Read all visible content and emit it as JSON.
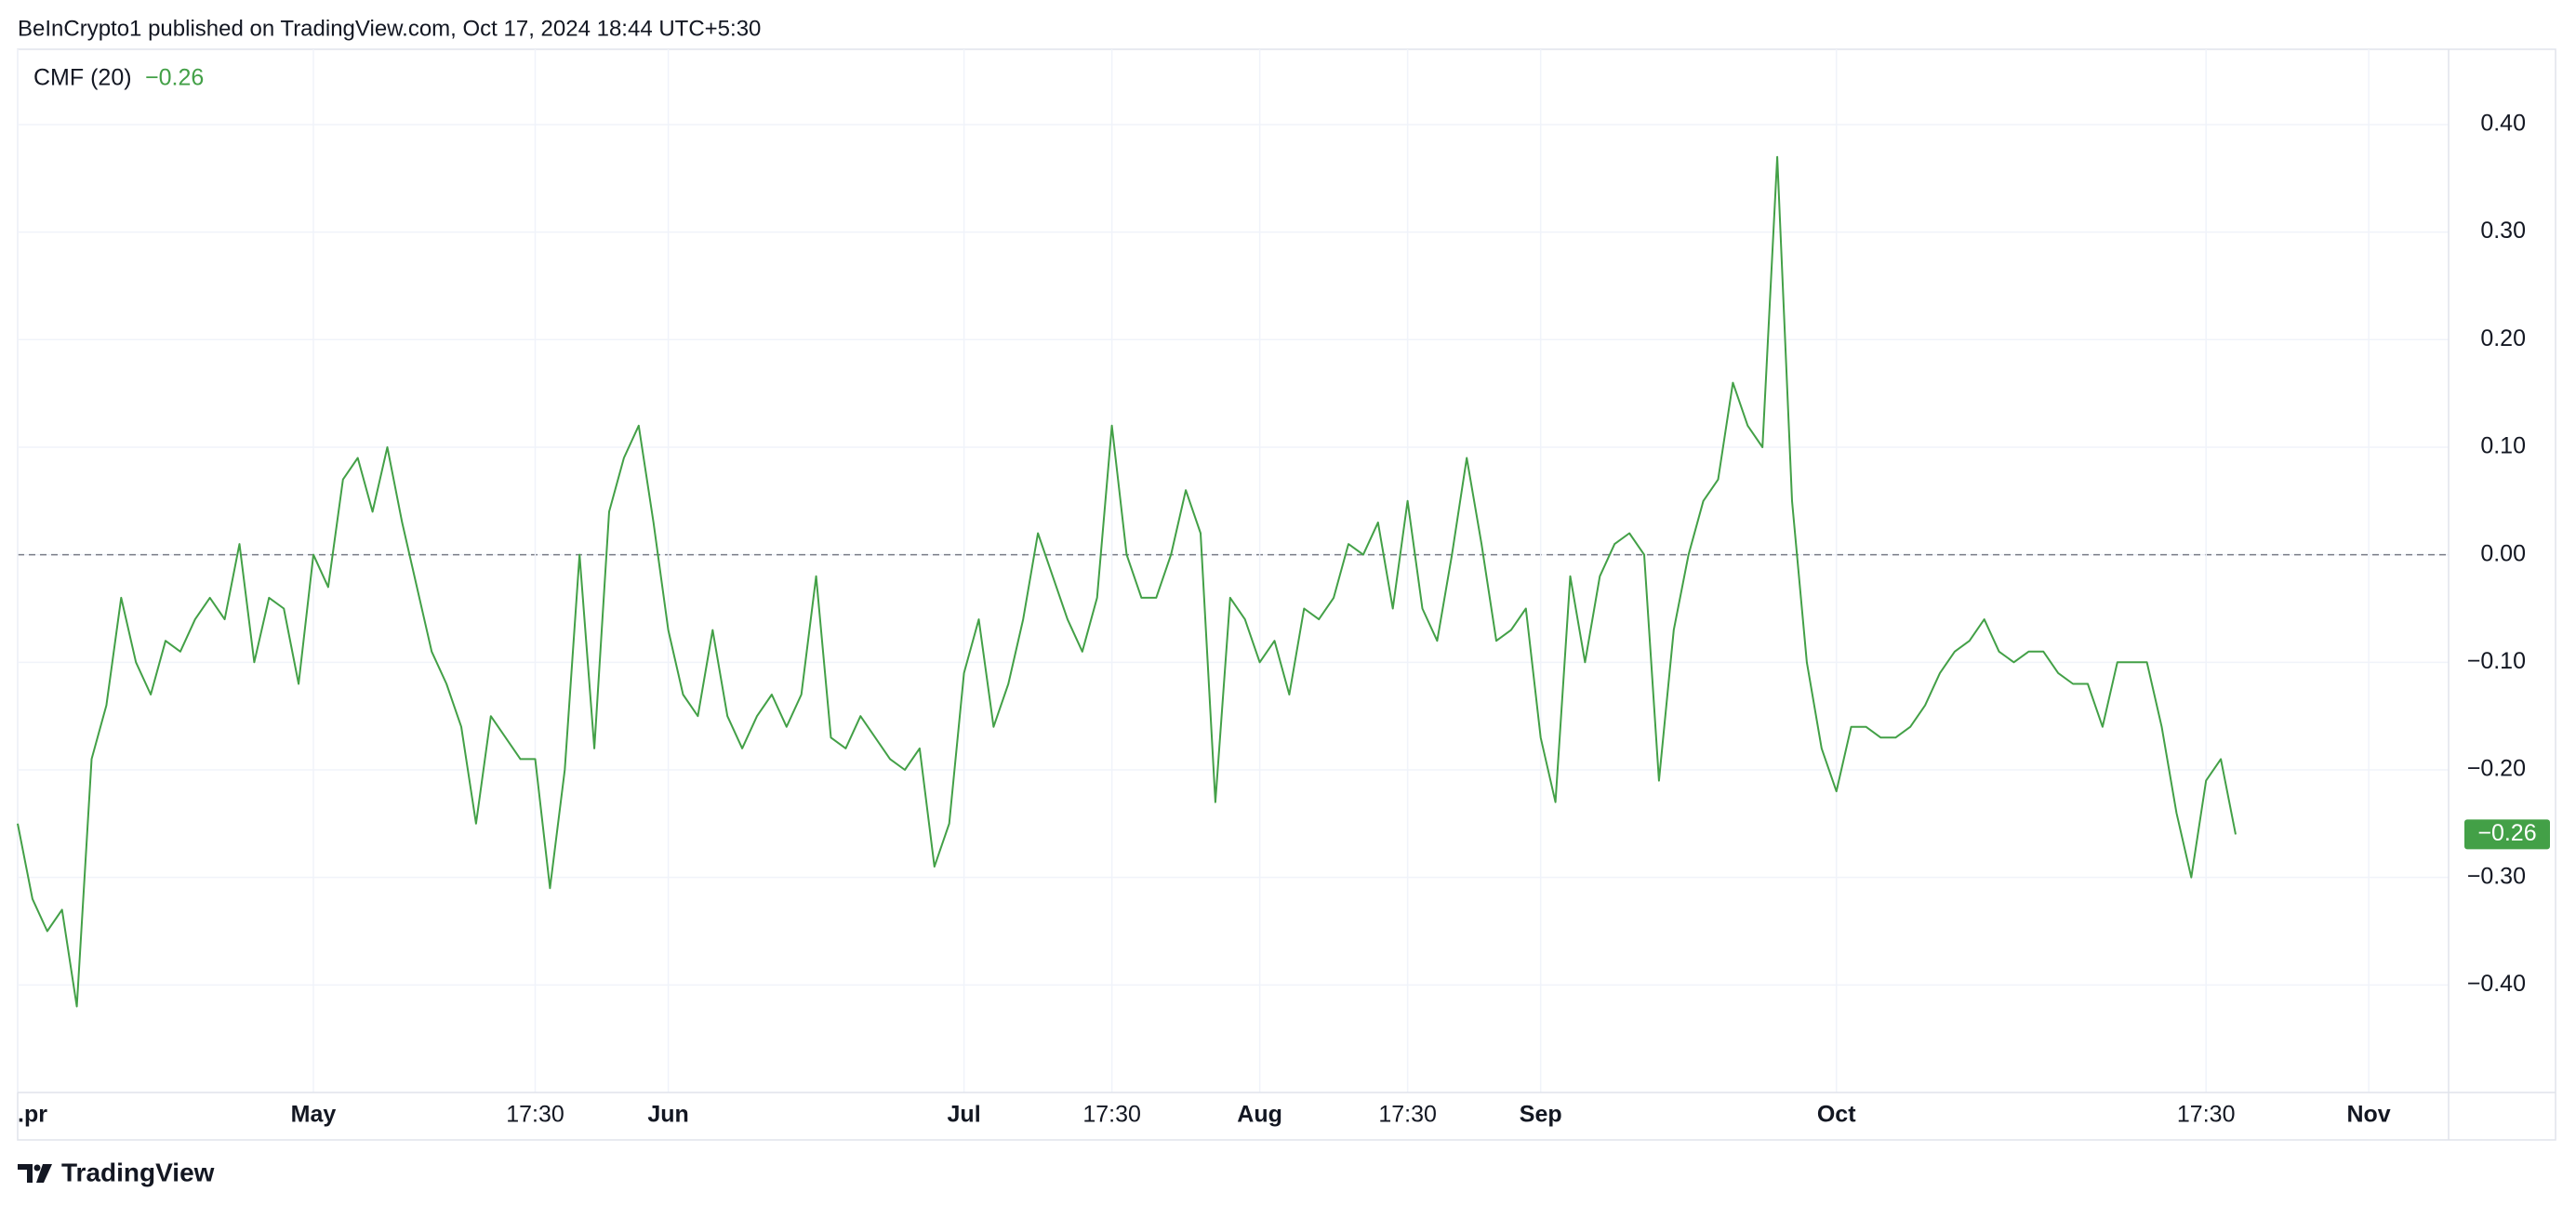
{
  "header": {
    "text": "BeInCrypto1 published on TradingView.com, Oct 17, 2024 18:44 UTC+5:30"
  },
  "footer": {
    "brand": "TradingView"
  },
  "chart_data": {
    "type": "line",
    "categories": [
      ".pr",
      null,
      null,
      null,
      null,
      null,
      null,
      null,
      null,
      null,
      null,
      null,
      null,
      null,
      null,
      null,
      null,
      null,
      null,
      null,
      "May",
      null,
      null,
      null,
      null,
      null,
      null,
      null,
      null,
      null,
      null,
      null,
      null,
      null,
      null,
      "17:30",
      null,
      null,
      null,
      null,
      null,
      null,
      null,
      null,
      "Jun",
      null,
      null,
      null,
      null,
      null,
      null,
      null,
      null,
      null,
      null,
      null,
      null,
      null,
      null,
      null,
      null,
      null,
      null,
      null,
      "Jul",
      null,
      null,
      null,
      null,
      null,
      null,
      null,
      null,
      null,
      "17:30",
      null,
      null,
      null,
      null,
      null,
      null,
      null,
      null,
      null,
      "Aug",
      null,
      null,
      null,
      null,
      null,
      null,
      null,
      null,
      null,
      "17:30",
      null,
      null,
      null,
      null,
      null,
      null,
      null,
      null,
      "Sep",
      null,
      null,
      null,
      null,
      null,
      null,
      null,
      null,
      null,
      null,
      null,
      null,
      null,
      null,
      null,
      null,
      null,
      null,
      null,
      "Oct",
      null,
      null,
      null,
      null,
      null,
      null,
      null,
      null,
      null,
      null,
      null,
      null,
      null,
      null,
      null,
      null,
      null,
      null,
      null,
      null,
      null,
      null,
      null,
      null,
      "17:30",
      null,
      null,
      null,
      null,
      null,
      null,
      null,
      null,
      null,
      null,
      "Nov",
      null,
      null,
      null,
      null,
      null
    ],
    "series": [
      {
        "name": "CMF (20)",
        "color": "#43a047",
        "last_value_label": "−0.26",
        "values": [
          -0.25,
          -0.32,
          -0.35,
          -0.33,
          -0.42,
          -0.19,
          -0.14,
          -0.04,
          -0.1,
          -0.13,
          -0.08,
          -0.09,
          -0.06,
          -0.04,
          -0.06,
          0.01,
          -0.1,
          -0.04,
          -0.05,
          -0.12,
          0,
          -0.03,
          0.07,
          0.09,
          0.04,
          0.1,
          0.03,
          -0.03,
          -0.09,
          -0.12,
          -0.16,
          -0.25,
          -0.15,
          -0.17,
          -0.19,
          -0.19,
          -0.31,
          -0.2,
          0,
          -0.18,
          0.04,
          0.09,
          0.12,
          0.03,
          -0.07,
          -0.13,
          -0.15,
          -0.07,
          -0.15,
          -0.18,
          -0.15,
          -0.13,
          -0.16,
          -0.13,
          -0.02,
          -0.17,
          -0.18,
          -0.15,
          -0.17,
          -0.19,
          -0.2,
          -0.18,
          -0.29,
          -0.25,
          -0.11,
          -0.06,
          -0.16,
          -0.12,
          -0.06,
          0.02,
          -0.02,
          -0.06,
          -0.09,
          -0.04,
          0.12,
          0,
          -0.04,
          -0.04,
          0,
          0.06,
          0.02,
          -0.23,
          -0.04,
          -0.06,
          -0.1,
          -0.08,
          -0.13,
          -0.05,
          -0.06,
          -0.04,
          0.01,
          0,
          0.03,
          -0.05,
          0.05,
          -0.05,
          -0.08,
          0,
          0.09,
          0.01,
          -0.08,
          -0.07,
          -0.05,
          -0.17,
          -0.23,
          -0.02,
          -0.1,
          -0.02,
          0.01,
          0.02,
          0,
          -0.21,
          -0.07,
          0,
          0.05,
          0.07,
          0.16,
          0.12,
          0.1,
          0.37,
          0.05,
          -0.1,
          -0.18,
          -0.22,
          -0.16,
          -0.16,
          -0.17,
          -0.17,
          -0.16,
          -0.14,
          -0.11,
          -0.09,
          -0.08,
          -0.06,
          -0.09,
          -0.1,
          -0.09,
          -0.09,
          -0.11,
          -0.12,
          -0.12,
          -0.16,
          -0.1,
          -0.1,
          -0.1,
          -0.16,
          -0.24,
          -0.3,
          -0.21,
          -0.19,
          -0.26,
          null,
          null,
          null,
          null,
          null,
          null,
          null,
          null,
          null,
          null,
          null,
          null,
          null,
          null
        ]
      }
    ],
    "ylim": [
      -0.5,
      0.47
    ],
    "yticks": [
      {
        "value": -0.4,
        "label": "−0.40"
      },
      {
        "value": -0.3,
        "label": "−0.30"
      },
      {
        "value": -0.2,
        "label": "−0.20"
      },
      {
        "value": -0.1,
        "label": "−0.10"
      },
      {
        "value": 0,
        "label": "0.00"
      },
      {
        "value": 0.1,
        "label": "0.10"
      },
      {
        "value": 0.2,
        "label": "0.20"
      },
      {
        "value": 0.3,
        "label": "0.30"
      },
      {
        "value": 0.4,
        "label": "0.40"
      }
    ],
    "grid": true
  }
}
